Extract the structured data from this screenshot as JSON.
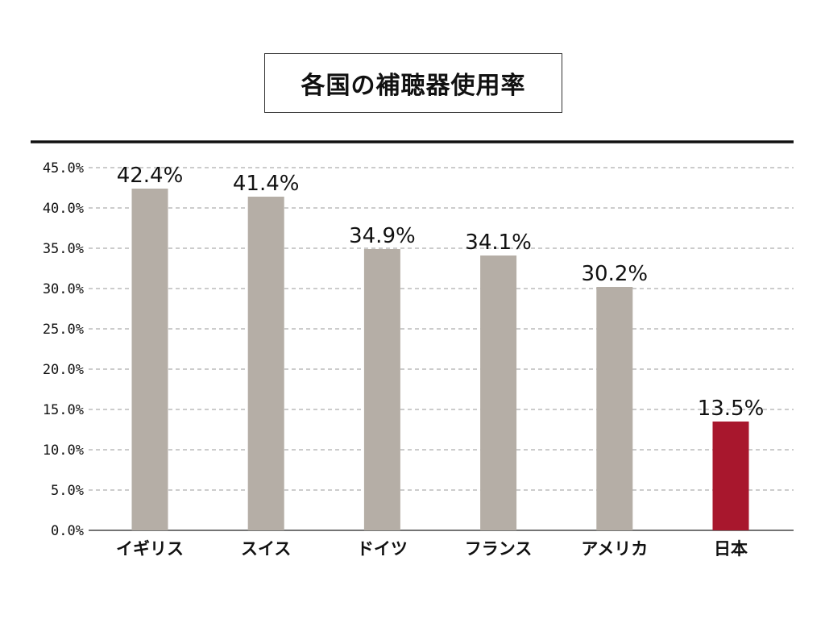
{
  "chart_data": {
    "type": "bar",
    "title": "各国の補聴器使用率",
    "xlabel": "",
    "ylabel": "",
    "categories": [
      "イギリス",
      "スイス",
      "ドイツ",
      "フランス",
      "アメリカ",
      "日本"
    ],
    "values": [
      42.4,
      41.4,
      34.9,
      34.1,
      30.2,
      13.5
    ],
    "value_labels": [
      "42.4%",
      "41.4%",
      "34.9%",
      "34.1%",
      "30.2%",
      "13.5%"
    ],
    "ylim": [
      0,
      45
    ],
    "yticks": [
      0,
      5,
      10,
      15,
      20,
      25,
      30,
      35,
      40,
      45
    ],
    "ytick_labels": [
      "0.0%",
      "5.0%",
      "10.0%",
      "15.0%",
      "20.0%",
      "25.0%",
      "30.0%",
      "35.0%",
      "40.0%",
      "45.0%"
    ],
    "grid": true,
    "legend": "none",
    "colors": {
      "default_bar": "#b5aea6",
      "highlight_bar": "#a8172d",
      "highlight_label": "#a8172d",
      "text": "#111111",
      "grid": "#999999",
      "top_rule": "#111111"
    },
    "highlight_index": 5
  }
}
